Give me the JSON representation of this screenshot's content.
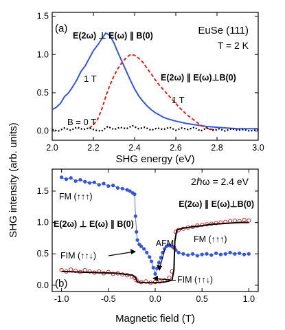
{
  "figure": {
    "ylabel": "SHG intensity (arb. units)"
  },
  "chart_data": [
    {
      "type": "line",
      "panel_label": "(a)",
      "xlabel": "SHG energy (eV)",
      "xlim": [
        2.0,
        3.0
      ],
      "ylim": [
        -0.12,
        1.55
      ],
      "xticks": [
        "2.0",
        "2.2",
        "2.4",
        "2.6",
        "2.8",
        "3.0"
      ],
      "yticks": [
        "0.0",
        "0.5",
        "1.0",
        "1.5"
      ],
      "title_lines": [
        "EuSe (111)",
        "T = 2 K"
      ],
      "series": [
        {
          "name": "E(2ω) ⊥ E(ω) ∥ B(0), 1 T",
          "color": "#3355dd",
          "style": "solid",
          "points": [
            [
              2.0,
              0.28
            ],
            [
              2.02,
              0.31
            ],
            [
              2.04,
              0.36
            ],
            [
              2.06,
              0.45
            ],
            [
              2.08,
              0.5
            ],
            [
              2.1,
              0.58
            ],
            [
              2.12,
              0.67
            ],
            [
              2.14,
              0.78
            ],
            [
              2.16,
              0.85
            ],
            [
              2.18,
              0.95
            ],
            [
              2.2,
              1.05
            ],
            [
              2.22,
              1.12
            ],
            [
              2.24,
              1.2
            ],
            [
              2.26,
              1.28
            ],
            [
              2.28,
              1.25
            ],
            [
              2.3,
              1.15
            ],
            [
              2.32,
              1.02
            ],
            [
              2.34,
              0.9
            ],
            [
              2.36,
              0.78
            ],
            [
              2.38,
              0.66
            ],
            [
              2.4,
              0.55
            ],
            [
              2.42,
              0.46
            ],
            [
              2.44,
              0.39
            ],
            [
              2.46,
              0.33
            ],
            [
              2.48,
              0.28
            ],
            [
              2.5,
              0.24
            ],
            [
              2.52,
              0.21
            ],
            [
              2.54,
              0.18
            ],
            [
              2.56,
              0.16
            ],
            [
              2.6,
              0.13
            ],
            [
              2.65,
              0.1
            ],
            [
              2.7,
              0.08
            ],
            [
              2.75,
              0.06
            ],
            [
              2.8,
              0.05
            ],
            [
              2.85,
              0.04
            ],
            [
              2.9,
              0.03
            ],
            [
              2.95,
              0.03
            ],
            [
              3.0,
              0.03
            ]
          ]
        },
        {
          "name": "E(2ω) ∥ E(ω)⊥B(0), 1 T",
          "color": "#dd2222",
          "style": "dashed",
          "points": [
            [
              2.18,
              0.04
            ],
            [
              2.2,
              0.08
            ],
            [
              2.22,
              0.15
            ],
            [
              2.24,
              0.28
            ],
            [
              2.26,
              0.45
            ],
            [
              2.28,
              0.6
            ],
            [
              2.3,
              0.72
            ],
            [
              2.32,
              0.82
            ],
            [
              2.34,
              0.9
            ],
            [
              2.36,
              0.96
            ],
            [
              2.38,
              1.0
            ],
            [
              2.4,
              0.99
            ],
            [
              2.42,
              0.95
            ],
            [
              2.44,
              0.9
            ],
            [
              2.46,
              0.82
            ],
            [
              2.48,
              0.75
            ],
            [
              2.5,
              0.67
            ],
            [
              2.52,
              0.6
            ],
            [
              2.54,
              0.54
            ],
            [
              2.56,
              0.48
            ],
            [
              2.58,
              0.42
            ],
            [
              2.6,
              0.36
            ],
            [
              2.62,
              0.3
            ],
            [
              2.64,
              0.25
            ],
            [
              2.66,
              0.2
            ],
            [
              2.68,
              0.16
            ],
            [
              2.7,
              0.12
            ],
            [
              2.72,
              0.08
            ],
            [
              2.74,
              0.05
            ],
            [
              2.76,
              0.03
            ],
            [
              2.8,
              0.01
            ]
          ]
        },
        {
          "name": "B = 0 T",
          "color": "#000000",
          "style": "dotted",
          "points": [
            [
              2.0,
              0.02
            ],
            [
              2.03,
              0.0
            ],
            [
              2.06,
              0.04
            ],
            [
              2.09,
              0.01
            ],
            [
              2.12,
              0.05
            ],
            [
              2.15,
              0.02
            ],
            [
              2.18,
              0.04
            ],
            [
              2.21,
              0.01
            ],
            [
              2.24,
              0.0
            ],
            [
              2.27,
              0.06
            ],
            [
              2.3,
              0.02
            ],
            [
              2.33,
              0.05
            ],
            [
              2.36,
              0.03
            ],
            [
              2.39,
              0.07
            ],
            [
              2.42,
              0.03
            ],
            [
              2.45,
              0.05
            ],
            [
              2.48,
              0.01
            ],
            [
              2.51,
              0.04
            ],
            [
              2.54,
              0.02
            ],
            [
              2.57,
              0.05
            ],
            [
              2.6,
              0.01
            ],
            [
              2.63,
              0.04
            ],
            [
              2.66,
              0.02
            ],
            [
              2.69,
              0.05
            ],
            [
              2.72,
              0.0
            ],
            [
              2.75,
              0.04
            ],
            [
              2.78,
              0.01
            ],
            [
              2.81,
              0.03
            ],
            [
              2.84,
              0.0
            ],
            [
              2.87,
              0.03
            ],
            [
              2.9,
              0.01
            ],
            [
              2.93,
              0.02
            ],
            [
              2.96,
              0.0
            ],
            [
              3.0,
              0.02
            ]
          ]
        }
      ],
      "annotations": {
        "perp_label": "E(2ω) ⊥ E(ω) ∥ B(0)",
        "par_label": "E(2ω) ∥ E(ω)⊥B(0)",
        "blue_field": "1 T",
        "red_field": "1 T",
        "zero_field": "B = 0 T"
      }
    },
    {
      "type": "scatter",
      "panel_label": "(b)",
      "xlabel": "Magnetic field (T)",
      "xlim": [
        -1.1,
        1.1
      ],
      "ylim": [
        -0.1,
        1.85
      ],
      "xticks": [
        "-1.0",
        "-0.5",
        "0.0",
        "0.5",
        "1.0"
      ],
      "yticks": [
        "0.0",
        "0.5",
        "1.0",
        "1.5"
      ],
      "energy_label": "2ℏω  = 2.4 eV",
      "series": [
        {
          "name": "E(2ω) ⊥ E(ω) ∥ B(0)",
          "color": "#3355dd",
          "marker": "filled-circle",
          "points": [
            [
              -1.0,
              1.72
            ],
            [
              -0.95,
              1.69
            ],
            [
              -0.9,
              1.71
            ],
            [
              -0.85,
              1.66
            ],
            [
              -0.8,
              1.68
            ],
            [
              -0.75,
              1.65
            ],
            [
              -0.7,
              1.63
            ],
            [
              -0.65,
              1.64
            ],
            [
              -0.6,
              1.6
            ],
            [
              -0.55,
              1.62
            ],
            [
              -0.5,
              1.58
            ],
            [
              -0.45,
              1.59
            ],
            [
              -0.4,
              1.55
            ],
            [
              -0.35,
              1.54
            ],
            [
              -0.3,
              1.52
            ],
            [
              -0.27,
              1.5
            ],
            [
              -0.24,
              1.47
            ],
            [
              -0.22,
              1.45
            ],
            [
              -0.21,
              1.1
            ],
            [
              -0.2,
              0.85
            ],
            [
              -0.19,
              0.72
            ],
            [
              -0.17,
              0.65
            ],
            [
              -0.15,
              0.62
            ],
            [
              -0.12,
              0.58
            ],
            [
              -0.09,
              0.52
            ],
            [
              -0.06,
              0.45
            ],
            [
              -0.04,
              0.38
            ],
            [
              -0.02,
              0.28
            ],
            [
              0.0,
              0.18
            ],
            [
              0.02,
              0.27
            ],
            [
              0.04,
              0.36
            ],
            [
              0.06,
              0.44
            ],
            [
              0.08,
              0.52
            ],
            [
              0.1,
              0.58
            ],
            [
              0.12,
              0.62
            ],
            [
              0.14,
              0.64
            ],
            [
              0.16,
              0.63
            ],
            [
              0.18,
              0.62
            ],
            [
              0.2,
              0.6
            ],
            [
              0.22,
              0.56
            ],
            [
              0.25,
              0.52
            ],
            [
              0.3,
              0.5
            ],
            [
              0.35,
              0.48
            ],
            [
              0.4,
              0.5
            ],
            [
              0.45,
              0.47
            ],
            [
              0.5,
              0.49
            ],
            [
              0.55,
              0.5
            ],
            [
              0.6,
              0.48
            ],
            [
              0.65,
              0.51
            ],
            [
              0.7,
              0.49
            ],
            [
              0.75,
              0.5
            ],
            [
              0.8,
              0.52
            ],
            [
              0.85,
              0.5
            ],
            [
              0.9,
              0.51
            ],
            [
              0.95,
              0.49
            ],
            [
              1.0,
              0.5
            ]
          ]
        },
        {
          "name": "E(2ω) ∥ E(ω)⊥B(0)",
          "color": "#dd2222",
          "marker": "open-circle",
          "points": [
            [
              -1.0,
              0.24
            ],
            [
              -0.95,
              0.22
            ],
            [
              -0.9,
              0.25
            ],
            [
              -0.85,
              0.23
            ],
            [
              -0.8,
              0.21
            ],
            [
              -0.75,
              0.24
            ],
            [
              -0.7,
              0.22
            ],
            [
              -0.65,
              0.2
            ],
            [
              -0.6,
              0.22
            ],
            [
              -0.55,
              0.19
            ],
            [
              -0.5,
              0.21
            ],
            [
              -0.45,
              0.18
            ],
            [
              -0.4,
              0.19
            ],
            [
              -0.35,
              0.17
            ],
            [
              -0.3,
              0.16
            ],
            [
              -0.25,
              0.14
            ],
            [
              -0.22,
              0.12
            ],
            [
              -0.2,
              0.08
            ],
            [
              -0.15,
              0.05
            ],
            [
              -0.1,
              0.06
            ],
            [
              -0.05,
              0.04
            ],
            [
              0.0,
              0.05
            ],
            [
              0.05,
              0.06
            ],
            [
              0.1,
              0.08
            ],
            [
              0.15,
              0.12
            ],
            [
              0.18,
              0.22
            ],
            [
              0.2,
              0.6
            ],
            [
              0.22,
              0.85
            ],
            [
              0.25,
              0.88
            ],
            [
              0.3,
              0.9
            ],
            [
              0.35,
              0.92
            ],
            [
              0.4,
              0.93
            ],
            [
              0.45,
              0.95
            ],
            [
              0.5,
              0.96
            ],
            [
              0.55,
              0.97
            ],
            [
              0.6,
              0.98
            ],
            [
              0.65,
              0.99
            ],
            [
              0.7,
              1.0
            ],
            [
              0.75,
              1.01
            ],
            [
              0.8,
              1.02
            ],
            [
              0.85,
              1.03
            ],
            [
              0.9,
              1.02
            ],
            [
              0.95,
              1.04
            ],
            [
              1.0,
              1.03
            ]
          ]
        },
        {
          "name": "fit",
          "color": "#000000",
          "style": "solid",
          "points": [
            [
              -1.0,
              0.22
            ],
            [
              -0.8,
              0.21
            ],
            [
              -0.6,
              0.2
            ],
            [
              -0.4,
              0.19
            ],
            [
              -0.3,
              0.17
            ],
            [
              -0.24,
              0.16
            ],
            [
              -0.21,
              0.12
            ],
            [
              -0.19,
              0.05
            ],
            [
              -0.1,
              0.04
            ],
            [
              0.0,
              0.04
            ],
            [
              0.1,
              0.05
            ],
            [
              0.18,
              0.08
            ],
            [
              0.2,
              0.25
            ],
            [
              0.21,
              0.7
            ],
            [
              0.23,
              0.88
            ],
            [
              0.3,
              0.91
            ],
            [
              0.4,
              0.93
            ],
            [
              0.5,
              0.95
            ],
            [
              0.6,
              0.97
            ],
            [
              0.7,
              0.98
            ],
            [
              0.8,
              0.99
            ],
            [
              0.9,
              1.0
            ],
            [
              1.0,
              1.0
            ]
          ]
        }
      ],
      "annotations": {
        "fm_left": "FM (↑↑↑)",
        "perp_label": "E(2ω) ⊥ E(ω) ∥ B(0)",
        "par_label": "E(2ω) ∥ E(ω)⊥B(0)",
        "fm_right": "FM (↑↑↑)",
        "afm": "AFM",
        "fim_left": "FIM (↑↑↓)",
        "fim_right": "FIM (↑↑↓)"
      }
    }
  ]
}
